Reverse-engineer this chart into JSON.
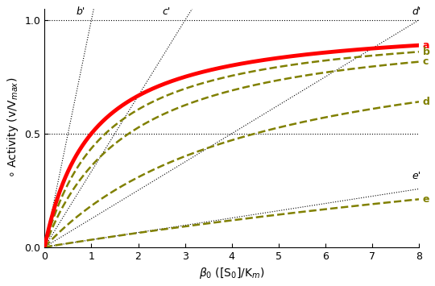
{
  "title": "",
  "xlabel": "\\beta_0 ([S_0]/K_m)",
  "ylabel": "\\circ Activity (v/V_{max})",
  "xlim": [
    0,
    8
  ],
  "ylim": [
    0.0,
    1.05
  ],
  "yticks": [
    0.0,
    0.5,
    1.0
  ],
  "xticks": [
    0,
    1,
    2,
    3,
    4,
    5,
    6,
    7,
    8
  ],
  "background_color": "#ffffff",
  "curve_a_color": "#ff0000",
  "curve_a_lw": 3.5,
  "olive_color": "#808000",
  "olive_lw": 1.8,
  "curves": [
    {
      "label": "a",
      "Km_eff": 1.0,
      "is_red": true
    },
    {
      "label": "b",
      "Km_eff": 1.3,
      "is_red": false
    },
    {
      "label": "c",
      "Km_eff": 1.8,
      "is_red": false
    },
    {
      "label": "d",
      "Km_eff": 4.5,
      "is_red": false
    },
    {
      "label": "e",
      "Km_eff": 30.0,
      "is_red": false
    }
  ],
  "tangent_lines": [
    {
      "label": "b'",
      "slope": 1.0,
      "x_label": 0.78,
      "y_label": 1.015
    },
    {
      "label": "c'",
      "slope": 0.333,
      "x_label": 2.6,
      "y_label": 1.015
    },
    {
      "label": "d'",
      "slope": 0.125,
      "x_label": 7.95,
      "y_label": 1.015
    },
    {
      "label": "e'",
      "slope": 0.032,
      "x_label": 7.95,
      "y_label": 0.29
    }
  ],
  "hlines": [
    1.0,
    0.5
  ],
  "label_fontsize": 9,
  "tick_fontsize": 9,
  "axis_label_fontsize": 10
}
